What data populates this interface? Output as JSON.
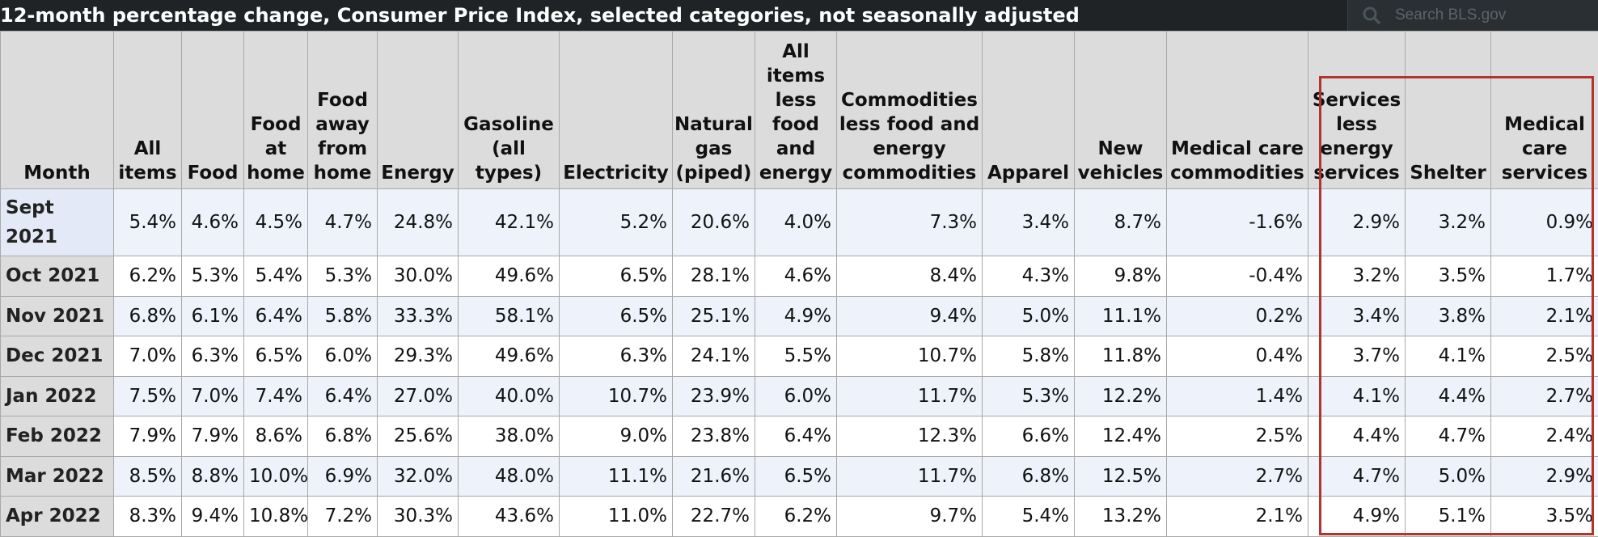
{
  "title": "12-month percentage change, Consumer Price Index, selected categories, not seasonally adjusted",
  "search": {
    "placeholder": "Search BLS.gov",
    "icon": "search-icon"
  },
  "colors": {
    "header_bar": "#1f2326",
    "highlight": "#b3342d",
    "zebra": "#edf2fb",
    "header_cell": "#dcdcdc"
  },
  "table": {
    "columns": [
      "Month",
      "All items",
      "Food",
      "Food at home",
      "Food away from home",
      "Energy",
      "Gasoline (all types)",
      "Electricity",
      "Natural gas (piped)",
      "All items less food and energy",
      "Commodities less food and energy commodities",
      "Apparel",
      "New vehicles",
      "Medical care commodities",
      "Services less energy services",
      "Shelter",
      "Medical care services"
    ],
    "rows": [
      {
        "month": "Sept 2021",
        "values": [
          "5.4%",
          "4.6%",
          "4.5%",
          "4.7%",
          "24.8%",
          "42.1%",
          "5.2%",
          "20.6%",
          "4.0%",
          "7.3%",
          "3.4%",
          "8.7%",
          "-1.6%",
          "2.9%",
          "3.2%",
          "0.9%"
        ]
      },
      {
        "month": "Oct 2021",
        "values": [
          "6.2%",
          "5.3%",
          "5.4%",
          "5.3%",
          "30.0%",
          "49.6%",
          "6.5%",
          "28.1%",
          "4.6%",
          "8.4%",
          "4.3%",
          "9.8%",
          "-0.4%",
          "3.2%",
          "3.5%",
          "1.7%"
        ]
      },
      {
        "month": "Nov 2021",
        "values": [
          "6.8%",
          "6.1%",
          "6.4%",
          "5.8%",
          "33.3%",
          "58.1%",
          "6.5%",
          "25.1%",
          "4.9%",
          "9.4%",
          "5.0%",
          "11.1%",
          "0.2%",
          "3.4%",
          "3.8%",
          "2.1%"
        ]
      },
      {
        "month": "Dec 2021",
        "values": [
          "7.0%",
          "6.3%",
          "6.5%",
          "6.0%",
          "29.3%",
          "49.6%",
          "6.3%",
          "24.1%",
          "5.5%",
          "10.7%",
          "5.8%",
          "11.8%",
          "0.4%",
          "3.7%",
          "4.1%",
          "2.5%"
        ]
      },
      {
        "month": "Jan 2022",
        "values": [
          "7.5%",
          "7.0%",
          "7.4%",
          "6.4%",
          "27.0%",
          "40.0%",
          "10.7%",
          "23.9%",
          "6.0%",
          "11.7%",
          "5.3%",
          "12.2%",
          "1.4%",
          "4.1%",
          "4.4%",
          "2.7%"
        ]
      },
      {
        "month": "Feb 2022",
        "values": [
          "7.9%",
          "7.9%",
          "8.6%",
          "6.8%",
          "25.6%",
          "38.0%",
          "9.0%",
          "23.8%",
          "6.4%",
          "12.3%",
          "6.6%",
          "12.4%",
          "2.5%",
          "4.4%",
          "4.7%",
          "2.4%"
        ]
      },
      {
        "month": "Mar 2022",
        "values": [
          "8.5%",
          "8.8%",
          "10.0%",
          "6.9%",
          "32.0%",
          "48.0%",
          "11.1%",
          "21.6%",
          "6.5%",
          "11.7%",
          "6.8%",
          "12.5%",
          "2.7%",
          "4.7%",
          "5.0%",
          "2.9%"
        ]
      },
      {
        "month": "Apr 2022",
        "values": [
          "8.3%",
          "9.4%",
          "10.8%",
          "7.2%",
          "30.3%",
          "43.6%",
          "11.0%",
          "22.7%",
          "6.2%",
          "9.7%",
          "5.4%",
          "13.2%",
          "2.1%",
          "4.9%",
          "5.1%",
          "3.5%"
        ]
      }
    ]
  }
}
